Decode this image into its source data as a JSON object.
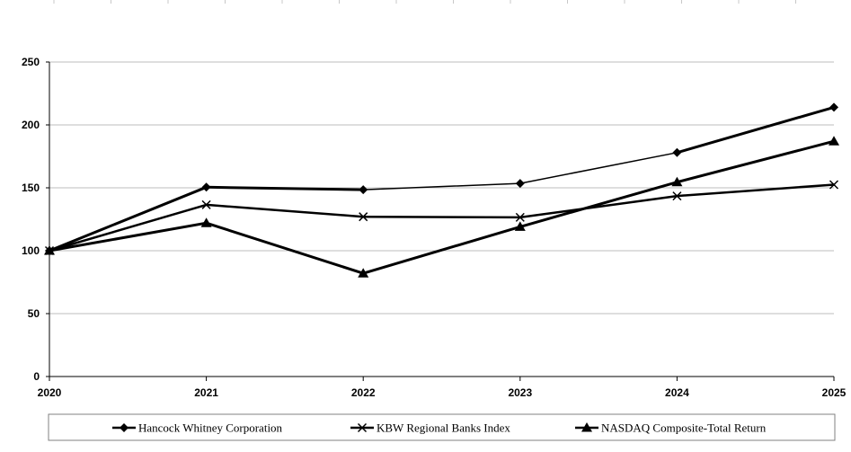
{
  "chart_data": {
    "type": "line",
    "categories": [
      "2020",
      "2021",
      "2022",
      "2023",
      "2024",
      "2025"
    ],
    "y_ticks": [
      "0",
      "50",
      "100",
      "150",
      "200",
      "250"
    ],
    "ylim": [
      0,
      250
    ],
    "grid": true,
    "legend_position": "bottom",
    "series": [
      {
        "name": "Hancock Whitney Corporation",
        "values": [
          100,
          150.5,
          148.5,
          153.5,
          178,
          214
        ],
        "marker": "diamond",
        "color": "#000000"
      },
      {
        "name": "KBW Regional Banks Index",
        "values": [
          100,
          136.5,
          127,
          126.5,
          143.5,
          152.5
        ],
        "marker": "x",
        "color": "#000000"
      },
      {
        "name": "NASDAQ Composite-Total Return",
        "values": [
          100,
          122,
          82,
          119,
          154.5,
          187
        ],
        "marker": "triangle",
        "color": "#000000"
      }
    ]
  }
}
